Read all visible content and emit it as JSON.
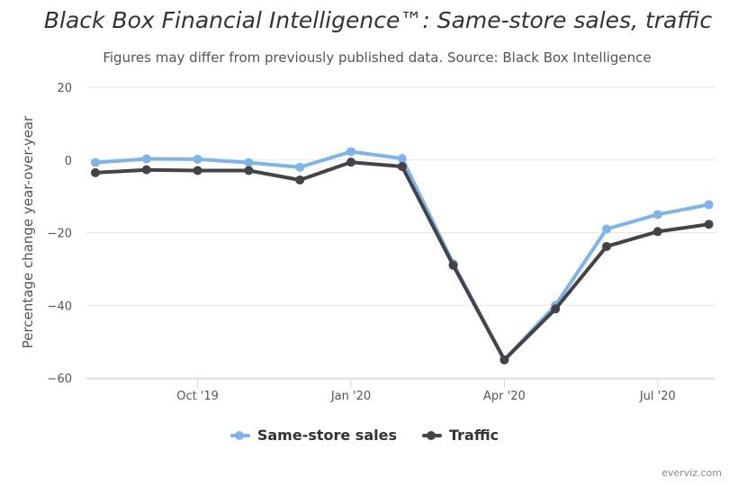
{
  "chart_data": {
    "type": "line",
    "title": "Black Box Financial Intelligence™: Same-store sales, traffic",
    "subtitle": "Figures may differ from previously published data. Source: Black Box Intelligence",
    "ylabel": "Percentage change year-over-year",
    "xlabel": "",
    "ylim": [
      -60,
      20
    ],
    "yticks": [
      20,
      0,
      -20,
      -40,
      -60
    ],
    "yticklabels": [
      "20",
      "0",
      "−20",
      "−40",
      "−60"
    ],
    "x": [
      "2019-08",
      "2019-09",
      "2019-10",
      "2019-11",
      "2019-12",
      "2020-01",
      "2020-02",
      "2020-03",
      "2020-04",
      "2020-05",
      "2020-06",
      "2020-07",
      "2020-08"
    ],
    "xticks": [
      {
        "x": "2019-10",
        "label": "Oct '19"
      },
      {
        "x": "2020-01",
        "label": "Jan '20"
      },
      {
        "x": "2020-04",
        "label": "Apr '20"
      },
      {
        "x": "2020-07",
        "label": "Jul '20"
      }
    ],
    "series": [
      {
        "name": "Same-store sales",
        "color": "#7cb5ec",
        "values": [
          -0.7,
          0.3,
          0.2,
          -0.7,
          -2.0,
          2.3,
          0.4,
          -28.5,
          -55.0,
          -40.0,
          -19.0,
          -15.0,
          -12.3
        ]
      },
      {
        "name": "Traffic",
        "color": "#434348",
        "values": [
          -3.5,
          -2.7,
          -2.9,
          -2.9,
          -5.5,
          -0.6,
          -1.8,
          -29.0,
          -55.0,
          -41.0,
          -23.8,
          -19.7,
          -17.7
        ]
      }
    ],
    "grid": true,
    "legend": "bottom-center"
  },
  "credit": "everviz.com"
}
